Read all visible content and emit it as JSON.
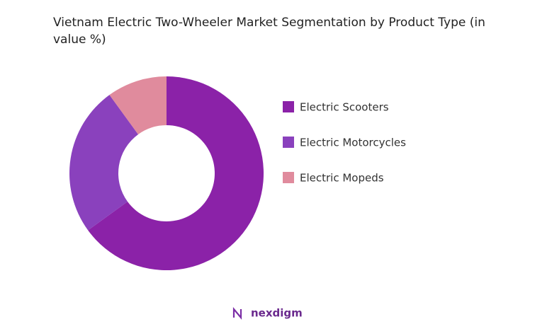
{
  "chart_data": {
    "type": "donut",
    "title": "Vietnam Electric Two-Wheeler Market Segmentation by Product Type (in value %)",
    "categories": [
      "Electric Scooters",
      "Electric Motorcycles",
      "Electric Mopeds"
    ],
    "values": [
      65,
      25,
      10
    ],
    "colors": [
      "#8b22a8",
      "#8a41bd",
      "#e08b9d"
    ],
    "legend": "right"
  },
  "footer": {
    "logo": "nexdigm"
  }
}
